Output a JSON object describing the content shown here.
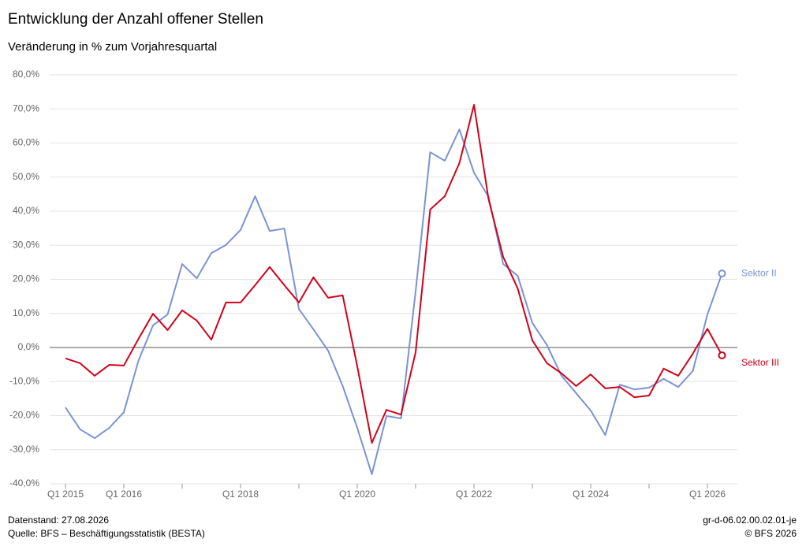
{
  "chart_data": {
    "type": "line",
    "title": "Entwicklung der Anzahl offener Stellen",
    "subtitle": "Veränderung in % zum Vorjahresquartal",
    "categories": [
      "Q1 2015",
      null,
      null,
      null,
      "Q1 2016",
      null,
      null,
      null,
      null,
      null,
      null,
      null,
      "Q1 2018",
      null,
      null,
      null,
      null,
      null,
      null,
      null,
      "Q1 2020",
      null,
      null,
      null,
      null,
      null,
      null,
      null,
      "Q1 2022",
      null,
      null,
      null,
      null,
      null,
      null,
      null,
      "Q1 2024",
      null,
      null,
      null,
      null,
      null,
      null,
      null,
      "Q1 2026",
      null
    ],
    "series": [
      {
        "name": "Sektor II",
        "color": "#7b93d4",
        "values": [
          -17.6,
          -24.0,
          -26.6,
          -23.6,
          -19.0,
          -3.9,
          6.5,
          9.7,
          24.5,
          20.3,
          27.7,
          30.1,
          34.5,
          44.4,
          34.2,
          34.9,
          11.3,
          5.3,
          -0.9,
          -11.3,
          -23.6,
          -37.2,
          -20.1,
          -20.8,
          16.4,
          57.3,
          54.8,
          64.0,
          51.3,
          44.2,
          24.5,
          21.0,
          7.2,
          0.7,
          -8.3,
          -13.4,
          -18.5,
          -25.7,
          -10.9,
          -12.3,
          -11.8,
          -9.2,
          -11.6,
          -6.9,
          9.7,
          21.7
        ]
      },
      {
        "name": "Sektor III",
        "color": "#d0021b",
        "values": [
          -3.2,
          -4.6,
          -8.3,
          -5.1,
          -5.3,
          2.5,
          9.9,
          5.1,
          10.9,
          7.9,
          2.3,
          13.2,
          13.2,
          18.3,
          23.6,
          18.3,
          13.2,
          20.6,
          14.6,
          15.3,
          -5.5,
          -28.0,
          -18.3,
          -19.7,
          -1.4,
          40.5,
          44.4,
          54.1,
          71.2,
          43.5,
          26.6,
          17.3,
          2.1,
          -4.6,
          -7.6,
          -11.3,
          -7.9,
          -12.0,
          -11.6,
          -14.6,
          -14.1,
          -6.2,
          -8.3,
          -1.8,
          5.5,
          -2.3
        ]
      }
    ],
    "ylim": [
      -40,
      80
    ],
    "yticks": [
      {
        "value": -40,
        "label": "-40,0%"
      },
      {
        "value": -30,
        "label": "-30,0%"
      },
      {
        "value": -20,
        "label": "-20,0%"
      },
      {
        "value": -10,
        "label": "-10,0%"
      },
      {
        "value": 0,
        "label": "0,0%"
      },
      {
        "value": 10,
        "label": "10,0%"
      },
      {
        "value": 20,
        "label": "20,0%"
      },
      {
        "value": 30,
        "label": "30,0%"
      },
      {
        "value": 40,
        "label": "40,0%"
      },
      {
        "value": 50,
        "label": "50,0%"
      },
      {
        "value": 60,
        "label": "60,0%"
      },
      {
        "value": 70,
        "label": "70,0%"
      },
      {
        "value": 80,
        "label": "80,0%"
      }
    ],
    "grid": true,
    "footer": {
      "left": [
        "Datenstand: 27.08.2026",
        "Quelle: BFS – Beschäftigungsstatistik (BESTA)"
      ],
      "right": [
        "gr-d-06.02.00.02.01-je",
        "© BFS 2026"
      ]
    }
  }
}
